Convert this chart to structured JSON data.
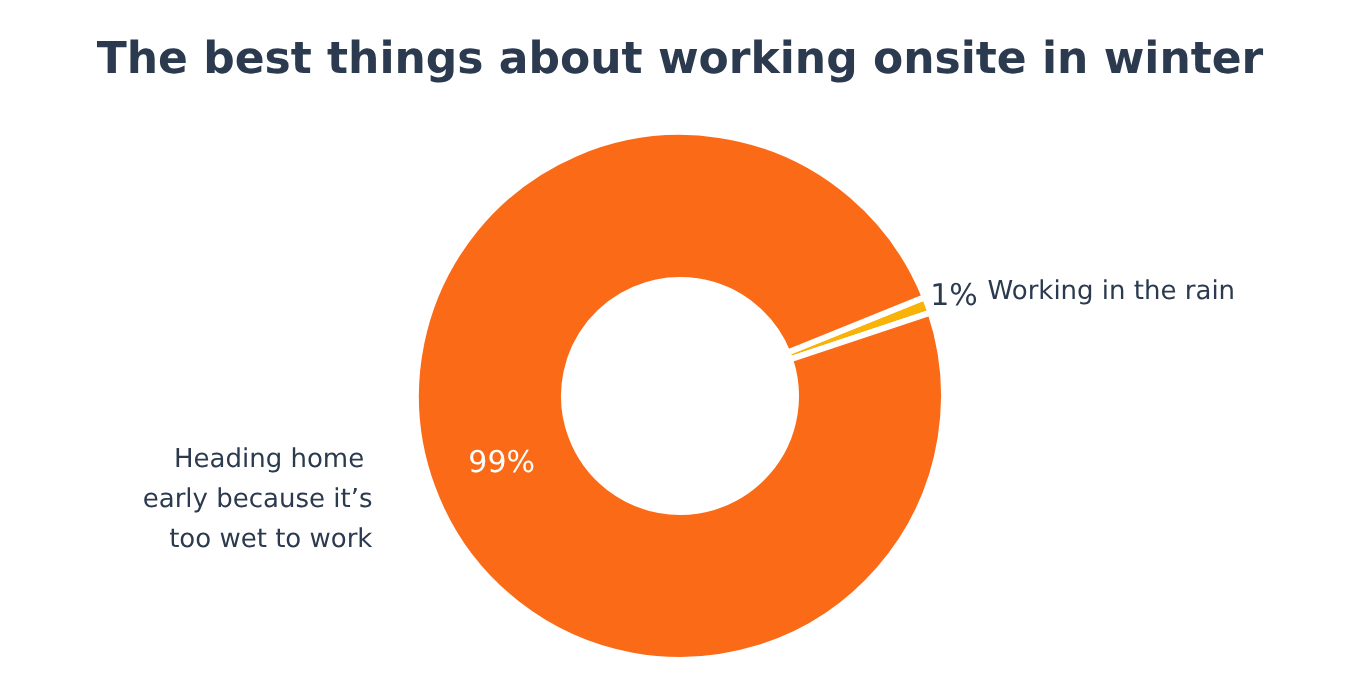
{
  "chart_data": {
    "type": "donut",
    "title": "The best things about working onsite in winter",
    "categories": [
      "Working in the rain",
      "Heading home early because it’s too wet to work"
    ],
    "values": [
      1,
      99
    ],
    "colors": [
      "#f9b208",
      "#fb6a17"
    ],
    "value_labels": [
      "1%",
      "99%"
    ],
    "legend": false
  }
}
